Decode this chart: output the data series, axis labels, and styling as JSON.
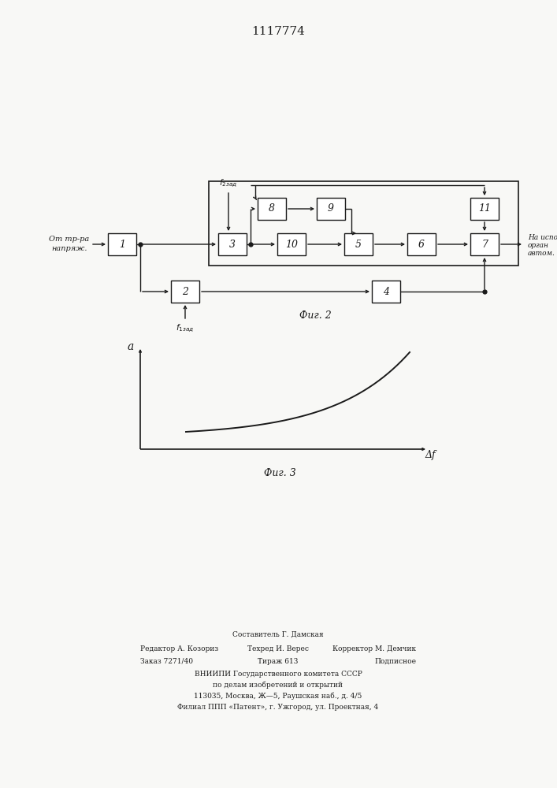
{
  "title": "1117774",
  "title_fontsize": 11,
  "bg_color": "#f8f8f6",
  "line_color": "#1a1a1a",
  "box_color": "#ffffff",
  "box_edge_color": "#1a1a1a",
  "fig2_caption": "Фиг. 2",
  "fig3_caption": "Фиг. 3",
  "fig3_xlabel": "Δf",
  "fig3_ylabel": "a",
  "input_label": [
    "От тр-ра",
    "напряж."
  ],
  "output_label": [
    "На исполн.",
    "орган",
    "автом."
  ],
  "f2_label": "f₂зад",
  "f1_label": "f₁зад",
  "footer_line0": "Составитель Г. Дамская",
  "footer_line1_left": "Редактор А. Козориз",
  "footer_line1_mid": "Техред И. Верес",
  "footer_line1_right": "Корректор М. Демчик",
  "footer_line2_left": "Заказ 7271/40",
  "footer_line2_mid": "Тираж 613",
  "footer_line2_right": "Подписное",
  "footer_line3": "ВНИИПИ Государственного комитета СССР",
  "footer_line4": "по делам изобретений и открытий",
  "footer_line5": "113035, Москва, Ж—5, Раушская наб., д. 4/5",
  "footer_line6": "Филиал ППП «Патент», г. Ужгород, ул. Проектная, 4"
}
